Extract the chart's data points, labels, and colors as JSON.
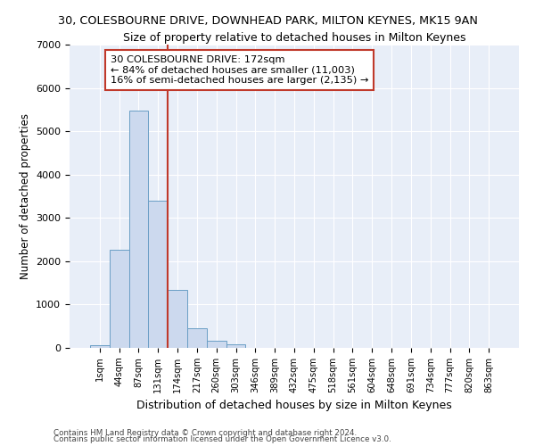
{
  "title": "30, COLESBOURNE DRIVE, DOWNHEAD PARK, MILTON KEYNES, MK15 9AN",
  "subtitle": "Size of property relative to detached houses in Milton Keynes",
  "xlabel": "Distribution of detached houses by size in Milton Keynes",
  "ylabel": "Number of detached properties",
  "categories": [
    "1sqm",
    "44sqm",
    "87sqm",
    "131sqm",
    "174sqm",
    "217sqm",
    "260sqm",
    "303sqm",
    "346sqm",
    "389sqm",
    "432sqm",
    "475sqm",
    "518sqm",
    "561sqm",
    "604sqm",
    "648sqm",
    "691sqm",
    "734sqm",
    "777sqm",
    "820sqm",
    "863sqm"
  ],
  "bar_values": [
    60,
    2270,
    5470,
    3400,
    1340,
    450,
    165,
    80,
    10,
    0,
    0,
    0,
    0,
    0,
    0,
    0,
    0,
    0,
    0,
    0,
    0
  ],
  "bar_color": "#ccd9ee",
  "bar_edge_color": "#6a9ec5",
  "background_color": "#e8eef8",
  "grid_color": "#ffffff",
  "vline_index": 4,
  "vline_color": "#c0392b",
  "annotation_line1": "30 COLESBOURNE DRIVE: 172sqm",
  "annotation_line2": "← 84% of detached houses are smaller (11,003)",
  "annotation_line3": "16% of semi-detached houses are larger (2,135) →",
  "annotation_box_color": "#ffffff",
  "annotation_box_edge": "#c0392b",
  "ylim": [
    0,
    7000
  ],
  "yticks": [
    0,
    1000,
    2000,
    3000,
    4000,
    5000,
    6000,
    7000
  ],
  "footer1": "Contains HM Land Registry data © Crown copyright and database right 2024.",
  "footer2": "Contains public sector information licensed under the Open Government Licence v3.0."
}
